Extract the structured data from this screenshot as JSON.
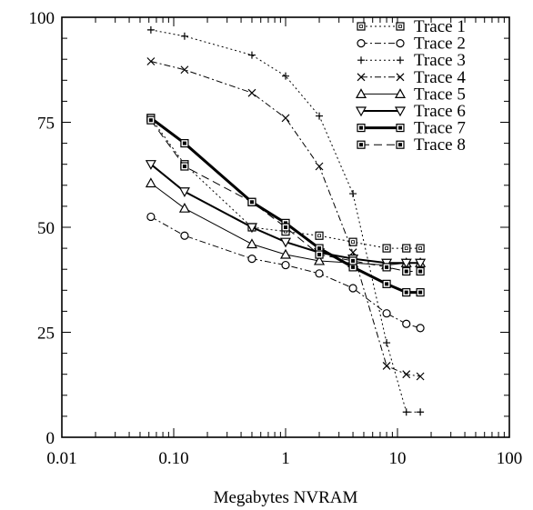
{
  "chart_data": {
    "type": "line",
    "title": "",
    "xlabel": "Megabytes NVRAM",
    "ylabel": "",
    "xscale": "log",
    "xlim": [
      0.01,
      100
    ],
    "ylim": [
      0,
      100
    ],
    "xticks": [
      0.01,
      0.1,
      1,
      10,
      100
    ],
    "xtick_labels": [
      "0.01",
      "0.10",
      "1",
      "10",
      "100"
    ],
    "yticks": [
      0,
      25,
      50,
      75,
      100
    ],
    "ytick_labels": [
      "0",
      "25",
      "50",
      "75",
      "100"
    ],
    "grid": false,
    "legend_position": "top-right",
    "x": [
      0.0625,
      0.125,
      0.5,
      1,
      2,
      4,
      8,
      12,
      16
    ],
    "series": [
      {
        "name": "Trace 1",
        "marker": "square-open",
        "line": "dotted",
        "width": 1,
        "values": [
          76,
          65,
          50,
          49,
          48,
          46.5,
          45,
          45,
          45
        ]
      },
      {
        "name": "Trace 2",
        "marker": "circle-open",
        "line": "dashdot",
        "width": 1,
        "values": [
          52.5,
          48,
          42.5,
          41,
          39,
          35.5,
          29.5,
          27,
          26
        ]
      },
      {
        "name": "Trace 3",
        "marker": "plus",
        "line": "dotted",
        "width": 1,
        "values": [
          97,
          95.5,
          91,
          86,
          76.5,
          58,
          22.5,
          6,
          6
        ]
      },
      {
        "name": "Trace 4",
        "marker": "cross",
        "line": "dashdot",
        "width": 1,
        "values": [
          89.5,
          87.5,
          82,
          76,
          64.5,
          44,
          17,
          15,
          14.5
        ]
      },
      {
        "name": "Trace 5",
        "marker": "triangle-up-open",
        "line": "solid",
        "width": 1,
        "values": [
          60.5,
          54.5,
          46,
          43.5,
          42,
          41.5,
          41,
          41.5,
          41.5
        ]
      },
      {
        "name": "Trace 6",
        "marker": "triangle-down-open",
        "line": "solid",
        "width": 2,
        "values": [
          65,
          58.5,
          50,
          46.5,
          44,
          42.5,
          41.5,
          41.5,
          41.5
        ]
      },
      {
        "name": "Trace 7",
        "marker": "square-filled",
        "line": "solid",
        "width": 3,
        "values": [
          76,
          70,
          56,
          51,
          45,
          40.5,
          36.5,
          34.5,
          34.5
        ]
      },
      {
        "name": "Trace 8",
        "marker": "square-filled",
        "line": "dashed",
        "width": 1,
        "values": [
          75.5,
          64.5,
          56,
          50,
          43.5,
          42,
          40.5,
          39.5,
          39.5
        ]
      }
    ]
  }
}
